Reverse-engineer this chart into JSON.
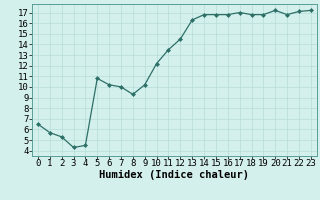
{
  "x": [
    0,
    1,
    2,
    3,
    4,
    5,
    6,
    7,
    8,
    9,
    10,
    11,
    12,
    13,
    14,
    15,
    16,
    17,
    18,
    19,
    20,
    21,
    22,
    23
  ],
  "y": [
    6.5,
    5.7,
    5.3,
    4.3,
    4.5,
    10.8,
    10.2,
    10.0,
    9.3,
    10.2,
    12.2,
    13.5,
    14.5,
    16.3,
    16.8,
    16.8,
    16.8,
    17.0,
    16.8,
    16.8,
    17.2,
    16.8,
    17.1,
    17.2
  ],
  "xlabel": "Humidex (Indice chaleur)",
  "line_color": "#2d7067",
  "marker_color": "#2d7067",
  "bg_color": "#d4f0ed",
  "grid_color": "#b8ddd9",
  "xlim": [
    -0.5,
    23.5
  ],
  "ylim": [
    3.5,
    17.8
  ],
  "yticks": [
    4,
    5,
    6,
    7,
    8,
    9,
    10,
    11,
    12,
    13,
    14,
    15,
    16,
    17
  ],
  "tick_fontsize": 6.5,
  "xlabel_fontsize": 7.5
}
